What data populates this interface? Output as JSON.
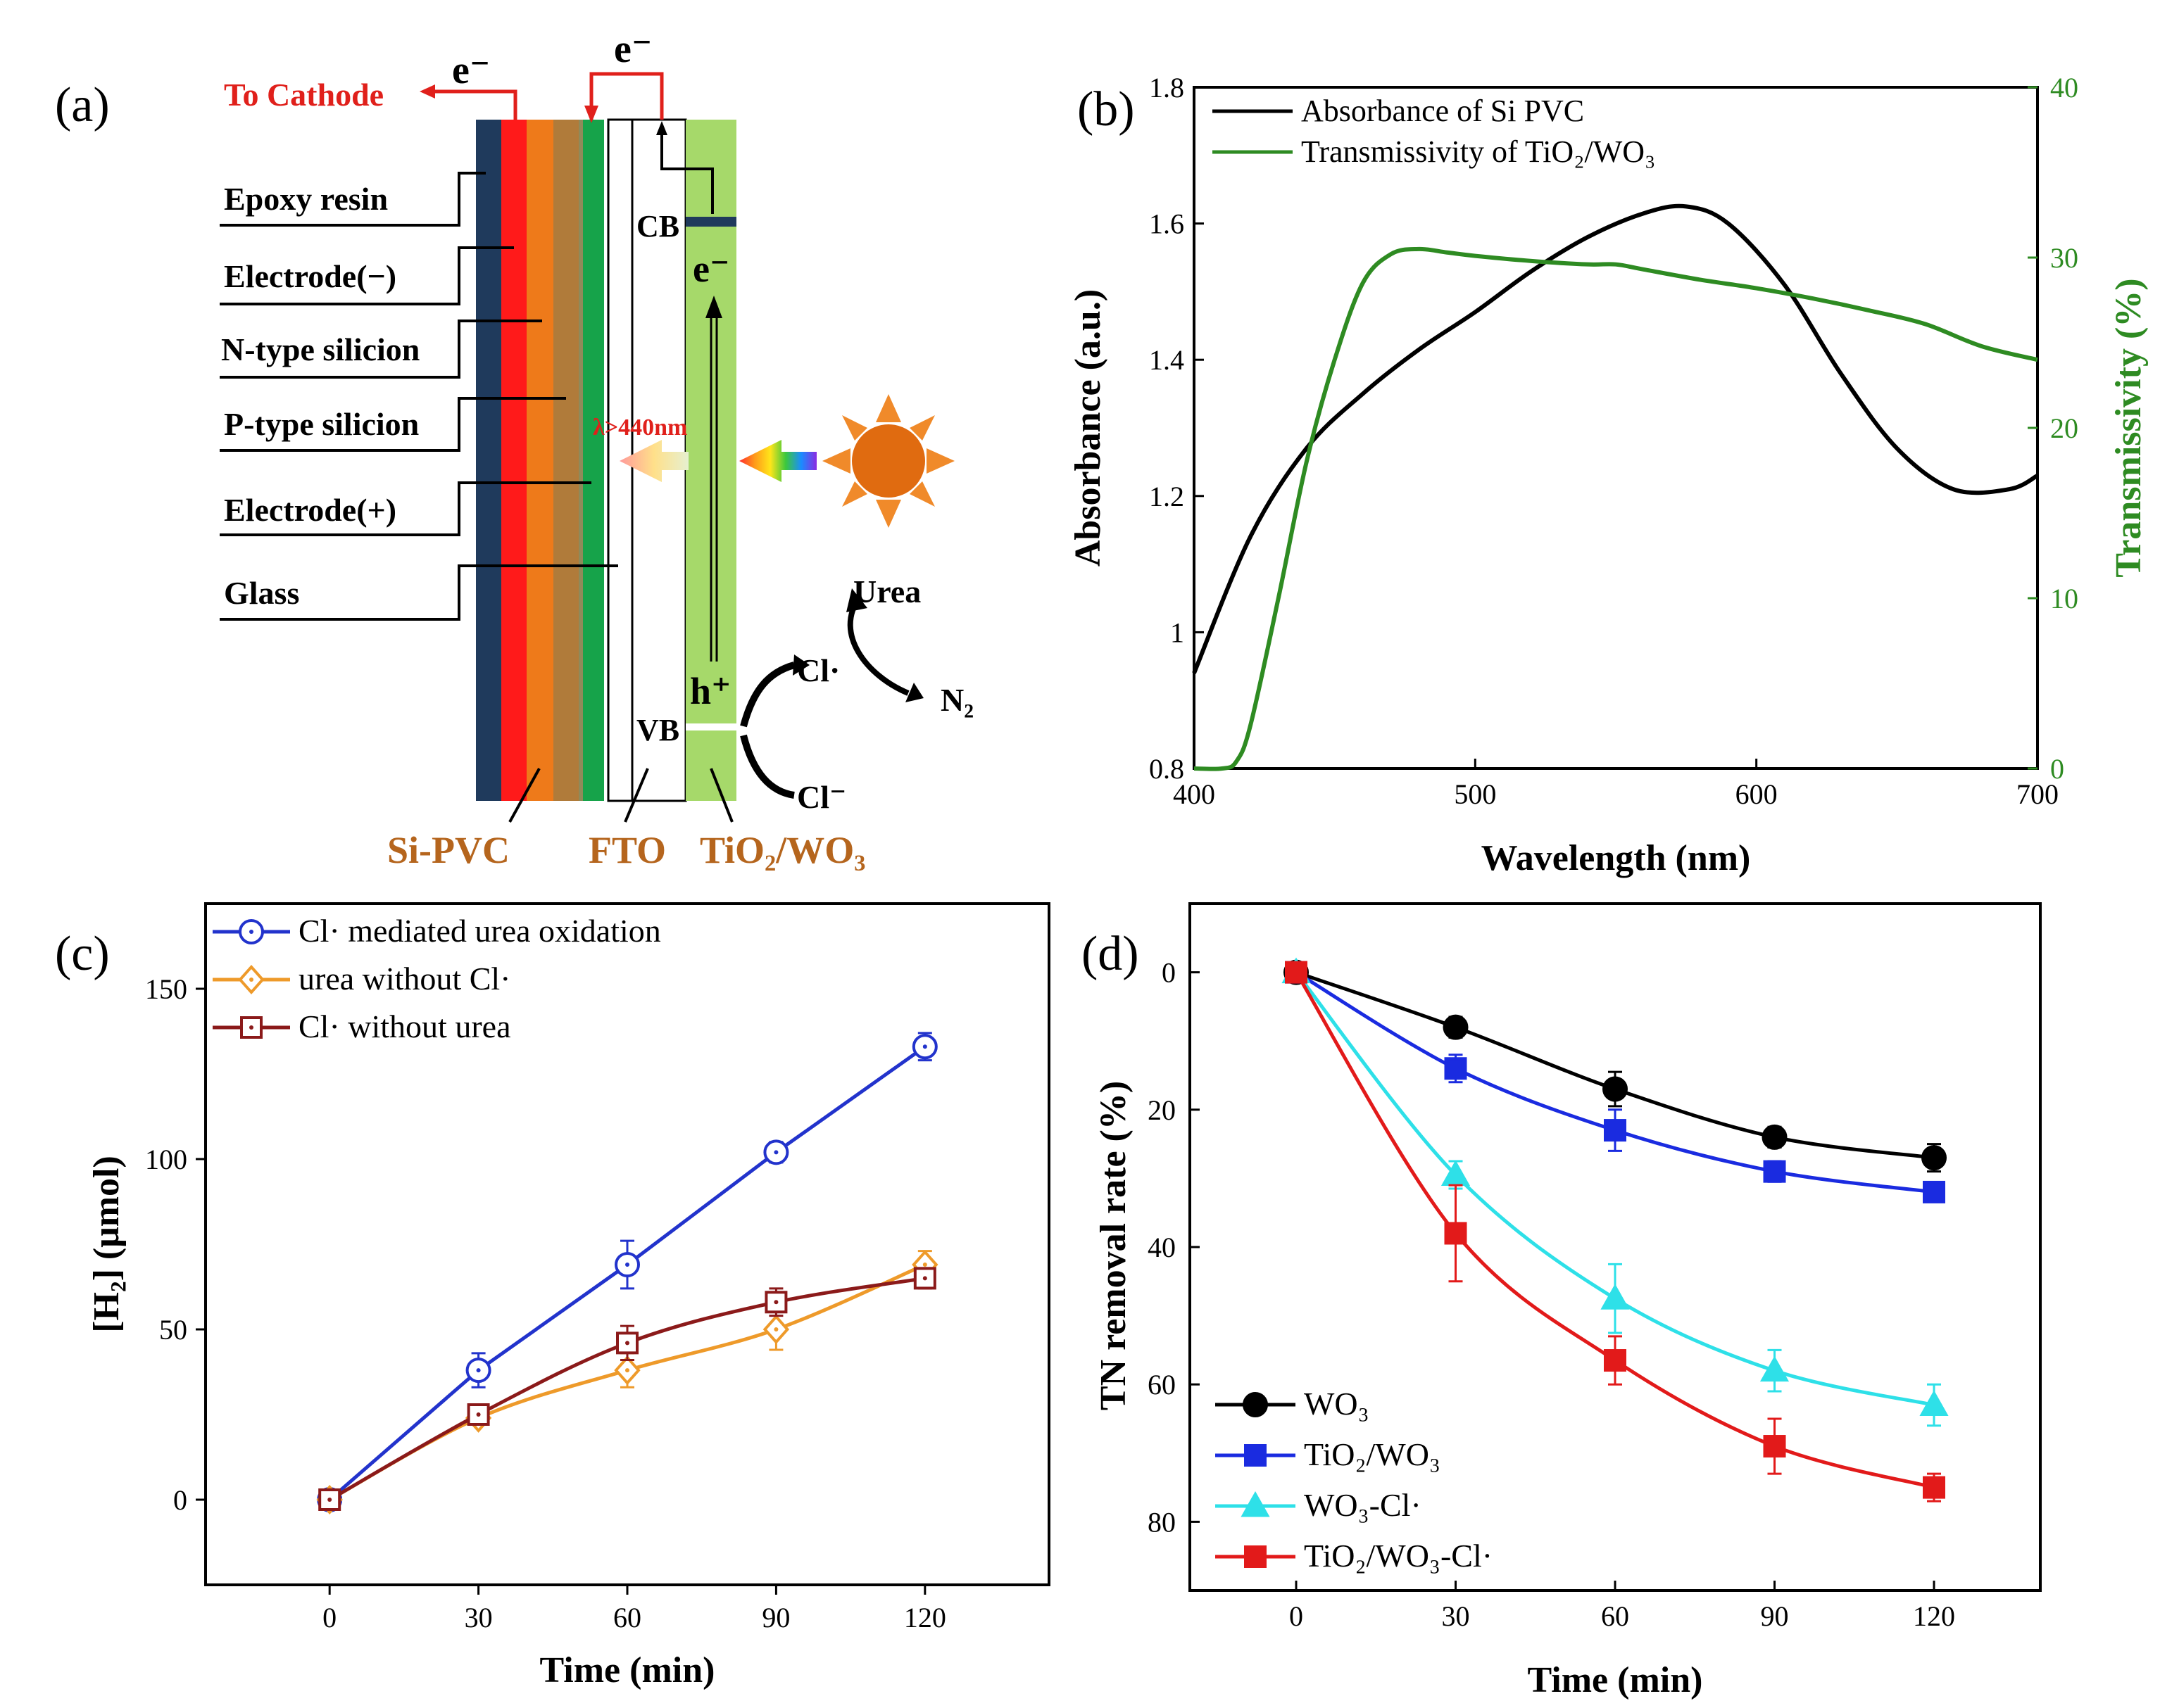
{
  "panels": {
    "a": {
      "label": "(a)",
      "to_cathode": "To Cathode",
      "electron": "e⁻",
      "layers": [
        "Epoxy resin",
        "Electrode(−)",
        "N-type silicion",
        "P-type silicion",
        "Electrode(+)",
        "Glass"
      ],
      "cb": "CB",
      "vb": "VB",
      "e_minus": "e⁻",
      "h_plus": "h⁺",
      "lambda": "λ>440nm",
      "urea": "Urea",
      "cl_rad1": "Cl·",
      "cl_ion": "Cl⁻",
      "n2": "N₂",
      "bottom_labels": [
        "Si-PVC",
        "FTO",
        "TiO₂/WO₃"
      ],
      "colors": {
        "epoxy": "#1f3a5c",
        "electrode_neg": "#ff1a1a",
        "n_type": "#ee7a1a",
        "p_type": "#b07b3a",
        "electrode_pos": "#8e8a5a",
        "glass": "#16a34a",
        "tio2wo3": "#a6d96a",
        "cathode": "#e0201b",
        "bottom_label": "#b5651d"
      }
    }
  },
  "chart_data": [
    {
      "panel": "b",
      "label": "(b)",
      "type": "line",
      "xlabel": "Wavelength (nm)",
      "ylabel": "Absorbance (a.u.)",
      "y2label": "Transmissivity (%)",
      "xlim": [
        400,
        700
      ],
      "ylim": [
        0.8,
        1.8
      ],
      "y2lim": [
        0,
        40
      ],
      "xticks": [
        400,
        500,
        600,
        700
      ],
      "yticks": [
        0.8,
        1.0,
        1.2,
        1.4,
        1.6,
        1.8
      ],
      "y2ticks": [
        0,
        10,
        20,
        30,
        40
      ],
      "series": [
        {
          "name": "Absorbance of Si PVC",
          "color": "#000000",
          "axis": "left",
          "x": [
            400,
            420,
            440,
            460,
            480,
            500,
            520,
            540,
            560,
            575,
            590,
            610,
            630,
            650,
            670,
            690,
            700
          ],
          "y": [
            0.94,
            1.14,
            1.27,
            1.35,
            1.415,
            1.47,
            1.53,
            1.58,
            1.615,
            1.625,
            1.6,
            1.51,
            1.38,
            1.27,
            1.21,
            1.21,
            1.23
          ]
        },
        {
          "name": "Transmissivity of TiO₂/WO₃",
          "color": "#2e8b22",
          "axis": "right",
          "x": [
            400,
            410,
            415,
            420,
            430,
            440,
            450,
            460,
            470,
            480,
            490,
            500,
            520,
            540,
            550,
            560,
            580,
            600,
            620,
            640,
            660,
            680,
            700
          ],
          "y": [
            0,
            0,
            0.4,
            2.5,
            10,
            18,
            24,
            28.5,
            30.2,
            30.5,
            30.3,
            30.1,
            29.8,
            29.6,
            29.6,
            29.3,
            28.7,
            28.2,
            27.6,
            26.9,
            26.1,
            24.8,
            24
          ]
        }
      ]
    },
    {
      "panel": "c",
      "label": "(c)",
      "type": "line",
      "xlabel": "Time (min)",
      "ylabel": "[H₂] (μmol)",
      "xlim": [
        -25,
        145
      ],
      "ylim": [
        -25,
        175
      ],
      "xticks": [
        0,
        30,
        60,
        90,
        120
      ],
      "yticks": [
        0,
        50,
        100,
        150
      ],
      "series": [
        {
          "name": "Cl· mediated urea oxidation",
          "color": "#2233cc",
          "marker": "circle",
          "x": [
            0,
            30,
            60,
            90,
            120
          ],
          "y": [
            0,
            38,
            69,
            102,
            133
          ],
          "err": [
            0,
            5,
            7,
            3,
            4
          ]
        },
        {
          "name": "urea without Cl·",
          "color": "#ee9a2a",
          "marker": "diamond",
          "x": [
            0,
            30,
            60,
            90,
            120
          ],
          "y": [
            0,
            24,
            38,
            50,
            69
          ],
          "err": [
            0,
            2,
            5,
            6,
            4
          ]
        },
        {
          "name": "Cl· without urea",
          "color": "#8b1a1a",
          "marker": "square",
          "x": [
            0,
            30,
            60,
            90,
            120
          ],
          "y": [
            0,
            25,
            46,
            58,
            65
          ],
          "err": [
            0,
            2,
            5,
            4,
            3
          ]
        }
      ]
    },
    {
      "panel": "d",
      "label": "(d)",
      "type": "line",
      "xlabel": "Time (min)",
      "ylabel": "TN removal rate (%)",
      "xlim": [
        -20,
        140
      ],
      "ylim": [
        -10,
        90
      ],
      "y_inverted": true,
      "xticks": [
        0,
        30,
        60,
        90,
        120
      ],
      "yticks": [
        0,
        20,
        40,
        60,
        80
      ],
      "series": [
        {
          "name": "WO₃",
          "color": "#000000",
          "marker": "circle",
          "x": [
            0,
            30,
            60,
            90,
            120
          ],
          "y": [
            0,
            8,
            17,
            24,
            27
          ],
          "err": [
            0,
            1.5,
            2.5,
            1.5,
            2
          ]
        },
        {
          "name": "TiO₂/WO₃",
          "color": "#1a2be0",
          "marker": "square",
          "x": [
            0,
            30,
            60,
            90,
            120
          ],
          "y": [
            0,
            14,
            23,
            29,
            32
          ],
          "err": [
            0,
            2,
            3,
            1.5,
            1
          ]
        },
        {
          "name": "WO₃-Cl·",
          "color": "#2ee0e8",
          "marker": "triangle",
          "x": [
            0,
            30,
            60,
            90,
            120
          ],
          "y": [
            0,
            29.5,
            47.5,
            58,
            63
          ],
          "err": [
            0,
            2,
            5,
            3,
            3
          ]
        },
        {
          "name": "TiO₂/WO₃-Cl·",
          "color": "#e21a1a",
          "marker": "square",
          "x": [
            0,
            30,
            60,
            90,
            120
          ],
          "y": [
            0,
            38,
            56.5,
            69,
            75
          ],
          "err": [
            0,
            7,
            3.5,
            4,
            2
          ]
        }
      ]
    }
  ]
}
